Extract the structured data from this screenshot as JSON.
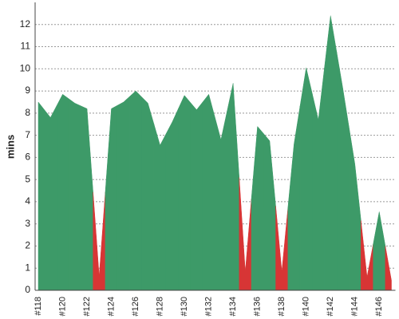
{
  "chart_data": {
    "type": "area",
    "y_label": "mins",
    "categories": [
      "#118",
      null,
      "#120",
      null,
      "#122",
      null,
      "#124",
      null,
      "#126",
      null,
      "#128",
      null,
      "#130",
      null,
      "#132",
      null,
      "#134",
      null,
      "#136",
      null,
      "#138",
      null,
      "#140",
      null,
      "#142",
      null,
      "#144",
      null,
      "#146",
      null
    ],
    "values": [
      8.5,
      7.8,
      8.85,
      8.45,
      8.2,
      0.65,
      8.2,
      8.5,
      9.0,
      8.45,
      6.55,
      7.6,
      8.8,
      8.15,
      8.85,
      6.8,
      9.35,
      0.85,
      7.4,
      6.75,
      0.85,
      6.6,
      10.05,
      7.7,
      12.4,
      9.15,
      5.7,
      0.6,
      3.55,
      0.45
    ],
    "point_colors": [
      "#3d9a68",
      "#3d9a68",
      "#3d9a68",
      "#3d9a68",
      "#3d9a68",
      "#d73535",
      "#3d9a68",
      "#3d9a68",
      "#3d9a68",
      "#3d9a68",
      "#3d9a68",
      "#3d9a68",
      "#3d9a68",
      "#3d9a68",
      "#3d9a68",
      "#3d9a68",
      "#3d9a68",
      "#d73535",
      "#3d9a68",
      "#3d9a68",
      "#d73535",
      "#3d9a68",
      "#3d9a68",
      "#3d9a68",
      "#3d9a68",
      "#3d9a68",
      "#3d9a68",
      "#d73535",
      "#3d9a68",
      "#d73535"
    ],
    "ylim": [
      0,
      13
    ],
    "yticks": [
      0,
      1,
      2,
      3,
      4,
      5,
      6,
      7,
      8,
      9,
      10,
      11,
      12
    ],
    "grid": true
  }
}
